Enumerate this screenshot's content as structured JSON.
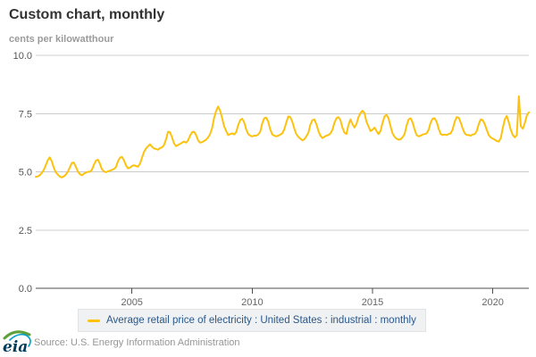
{
  "header": {
    "title": "Custom chart, monthly",
    "unit_label": "cents per kilowatthour"
  },
  "legend": {
    "label": "Average retail price of electricity : United States : industrial : monthly"
  },
  "footer": {
    "logo_text": "eia",
    "source": "Source: U.S. Energy Information Administration"
  },
  "colors": {
    "line": "#fcc20e",
    "legend_text": "#29588c",
    "legend_bg": "#f0f1f2",
    "grid": "#cccccc",
    "axis": "#4d4d4d",
    "tick_label": "#555555",
    "title": "#333333",
    "muted": "#9b9b9b",
    "logo_navy": "#003a5d",
    "logo_green": "#5fa03c",
    "logo_teal": "#00a0c6"
  },
  "chart_data": {
    "type": "line",
    "title": "Custom chart, monthly",
    "ylabel": "cents per kilowatthour",
    "series_name": "Average retail price of electricity : United States : industrial : monthly",
    "x_unit": "month",
    "x_start": "2001-01",
    "x_end": "2021-07",
    "x_tick_labels": [
      "2005",
      "2010",
      "2015",
      "2020"
    ],
    "x_tick_month_indices": [
      48,
      108,
      168,
      228
    ],
    "y_ticks": [
      0,
      2.5,
      5,
      7.5,
      10
    ],
    "y_tick_labels": [
      "0.0",
      "2.5",
      "5.0",
      "7.5",
      "10.0"
    ],
    "ylim": [
      0,
      10
    ],
    "grid": true,
    "legend_position": "bottom",
    "values": [
      4.78,
      4.8,
      4.85,
      4.95,
      5.08,
      5.28,
      5.5,
      5.62,
      5.45,
      5.18,
      4.98,
      4.88,
      4.8,
      4.76,
      4.8,
      4.88,
      5.0,
      5.18,
      5.38,
      5.4,
      5.22,
      5.02,
      4.9,
      4.85,
      4.92,
      4.96,
      5.0,
      5.0,
      5.08,
      5.3,
      5.48,
      5.52,
      5.35,
      5.12,
      5.02,
      4.98,
      5.02,
      5.05,
      5.08,
      5.12,
      5.2,
      5.45,
      5.6,
      5.64,
      5.5,
      5.28,
      5.15,
      5.18,
      5.25,
      5.28,
      5.25,
      5.22,
      5.35,
      5.6,
      5.85,
      6.0,
      6.1,
      6.18,
      6.08,
      6.0,
      5.98,
      5.95,
      6.02,
      6.05,
      6.15,
      6.4,
      6.72,
      6.7,
      6.48,
      6.22,
      6.1,
      6.15,
      6.2,
      6.25,
      6.3,
      6.25,
      6.35,
      6.55,
      6.7,
      6.72,
      6.58,
      6.35,
      6.25,
      6.28,
      6.32,
      6.38,
      6.48,
      6.62,
      6.88,
      7.32,
      7.62,
      7.8,
      7.62,
      7.3,
      6.95,
      6.75,
      6.58,
      6.62,
      6.65,
      6.6,
      6.7,
      7.0,
      7.22,
      7.28,
      7.12,
      6.82,
      6.62,
      6.55,
      6.52,
      6.55,
      6.55,
      6.6,
      6.72,
      7.08,
      7.3,
      7.32,
      7.15,
      6.82,
      6.6,
      6.55,
      6.52,
      6.55,
      6.6,
      6.65,
      6.82,
      7.12,
      7.38,
      7.35,
      7.15,
      6.85,
      6.62,
      6.5,
      6.42,
      6.35,
      6.4,
      6.52,
      6.68,
      7.02,
      7.22,
      7.25,
      7.05,
      6.75,
      6.55,
      6.45,
      6.5,
      6.55,
      6.58,
      6.65,
      6.8,
      7.1,
      7.3,
      7.35,
      7.22,
      6.9,
      6.68,
      6.62,
      7.0,
      7.25,
      7.05,
      6.9,
      7.05,
      7.35,
      7.52,
      7.62,
      7.52,
      7.15,
      6.95,
      6.75,
      6.8,
      6.9,
      6.75,
      6.62,
      6.75,
      7.1,
      7.38,
      7.45,
      7.3,
      6.95,
      6.65,
      6.5,
      6.42,
      6.38,
      6.4,
      6.48,
      6.62,
      6.98,
      7.25,
      7.3,
      7.12,
      6.82,
      6.58,
      6.52,
      6.55,
      6.6,
      6.62,
      6.65,
      6.8,
      7.1,
      7.28,
      7.3,
      7.15,
      6.85,
      6.62,
      6.58,
      6.6,
      6.58,
      6.62,
      6.65,
      6.82,
      7.15,
      7.35,
      7.32,
      7.12,
      6.85,
      6.65,
      6.58,
      6.58,
      6.55,
      6.6,
      6.62,
      6.75,
      7.05,
      7.25,
      7.22,
      7.05,
      6.8,
      6.58,
      6.48,
      6.42,
      6.38,
      6.32,
      6.3,
      6.45,
      6.88,
      7.25,
      7.4,
      7.12,
      6.8,
      6.58,
      6.48,
      6.58,
      8.25,
      6.95,
      6.85,
      7.1,
      7.42,
      7.55
    ]
  }
}
